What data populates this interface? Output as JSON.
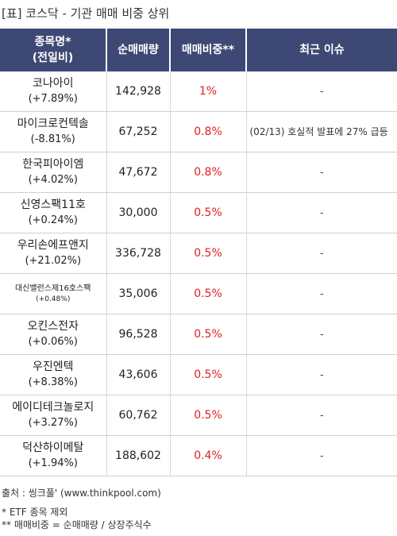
{
  "title": "[표] 코스닥 - 기관 매매 비중 상위",
  "headers": {
    "name_line1": "종목명*",
    "name_line2": "(전일비)",
    "volume": "순매매량",
    "ratio": "매매비중**",
    "issue": "최근 이슈"
  },
  "rows": [
    {
      "name": "코나아이",
      "change": "(+7.89%)",
      "volume": "142,928",
      "ratio": "1%",
      "issue": "-"
    },
    {
      "name": "마이크로컨텍솔",
      "change": "(-8.81%)",
      "volume": "67,252",
      "ratio": "0.8%",
      "issue": "(02/13) 호실적 발표에 27% 급등"
    },
    {
      "name": "한국피아이엠",
      "change": "(+4.02%)",
      "volume": "47,672",
      "ratio": "0.8%",
      "issue": "-"
    },
    {
      "name": "신영스팩11호",
      "change": "(+0.24%)",
      "volume": "30,000",
      "ratio": "0.5%",
      "issue": "-"
    },
    {
      "name": "우리손에프앤지",
      "change": "(+21.02%)",
      "volume": "336,728",
      "ratio": "0.5%",
      "issue": "-"
    },
    {
      "name": "대신밸런스제16호스팩",
      "change": "(+0.48%)",
      "volume": "35,006",
      "ratio": "0.5%",
      "issue": "-"
    },
    {
      "name": "오킨스전자",
      "change": "(+0.06%)",
      "volume": "96,528",
      "ratio": "0.5%",
      "issue": "-"
    },
    {
      "name": "우진엔텍",
      "change": "(+8.38%)",
      "volume": "43,606",
      "ratio": "0.5%",
      "issue": "-"
    },
    {
      "name": "에이디테크놀로지",
      "change": "(+3.27%)",
      "volume": "60,762",
      "ratio": "0.5%",
      "issue": "-"
    },
    {
      "name": "덕산하이메탈",
      "change": "(+1.94%)",
      "volume": "188,602",
      "ratio": "0.4%",
      "issue": "-"
    }
  ],
  "source": "출처 : 씽크풀' (www.thinkpool.com)",
  "note1": "* ETF 종목 제외",
  "note2": "** 매매비중 = 순매매량 / 상장주식수",
  "colors": {
    "header_bg": "#3d4875",
    "ratio_text": "#e02020"
  }
}
